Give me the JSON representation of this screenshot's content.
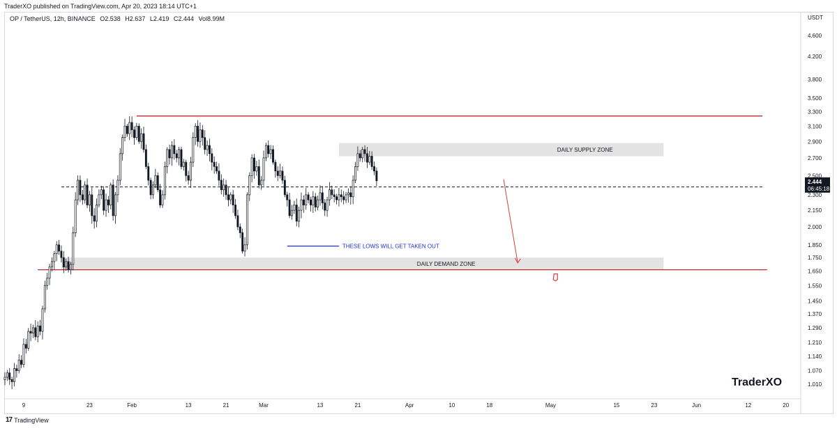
{
  "header": {
    "published": "TraderXO published on TradingView.com, Apr 20, 2023 18:14 UTC+1"
  },
  "legend": {
    "symbol": "OP / TetherUS, 12h, BINANCE",
    "open": "O2.538",
    "high": "H2.637",
    "low": "L2.419",
    "close": "C2.444",
    "volume": "Vol8.99M"
  },
  "footer": {
    "brand": "TradingView",
    "icon": "tradingview-logo-icon"
  },
  "watermark": "TraderXO",
  "colors": {
    "up": "#131722",
    "down": "#131722",
    "resistance": "#c2272d",
    "support_line": "#c2272d",
    "lows_line": "#1b2ee0",
    "zone_fill": "#e3e3e3",
    "arrow": "#e0393e"
  },
  "chart_data": {
    "type": "candlestick",
    "title": "",
    "currency": "USDT",
    "y_scale": "log",
    "ylim": [
      0.95,
      4.9
    ],
    "y_ticks": [
      "4.600",
      "4.200",
      "3.800",
      "3.500",
      "3.300",
      "3.100",
      "2.900",
      "2.700",
      "2.500",
      "2.300",
      "2.150",
      "2.000",
      "1.850",
      "1.750",
      "1.650",
      "1.550",
      "1.450",
      "1.370",
      "1.290",
      "1.210",
      "1.140",
      "1.070",
      "1.010"
    ],
    "x_ticks": [
      {
        "label": "9",
        "date": "2023-01-09"
      },
      {
        "label": "23",
        "date": "2023-01-23"
      },
      {
        "label": "Feb",
        "date": "2023-02-01"
      },
      {
        "label": "13",
        "date": "2023-02-13"
      },
      {
        "label": "21",
        "date": "2023-02-21"
      },
      {
        "label": "Mar",
        "date": "2023-03-01"
      },
      {
        "label": "13",
        "date": "2023-03-13"
      },
      {
        "label": "21",
        "date": "2023-03-21"
      },
      {
        "label": "Apr",
        "date": "2023-04-01"
      },
      {
        "label": "10",
        "date": "2023-04-10"
      },
      {
        "label": "18",
        "date": "2023-04-18"
      },
      {
        "label": "May",
        "date": "2023-05-01"
      },
      {
        "label": "15",
        "date": "2023-05-15"
      },
      {
        "label": "23",
        "date": "2023-05-23"
      },
      {
        "label": "Jun",
        "date": "2023-06-01"
      },
      {
        "label": "12",
        "date": "2023-06-12"
      },
      {
        "label": "20",
        "date": "2023-06-20"
      }
    ],
    "date_range": [
      "2023-01-05",
      "2023-06-23"
    ],
    "last_price": {
      "value": 2.444,
      "label": "2.444",
      "countdown": "06:45:18",
      "dashed_level": 2.38
    },
    "series": [
      {
        "name": "OP / TetherUS",
        "interval": "12h",
        "start": "2023-01-05",
        "closes": [
          1.04,
          1.06,
          1.03,
          1.02,
          1.08,
          1.07,
          1.12,
          1.1,
          1.2,
          1.18,
          1.27,
          1.26,
          1.29,
          1.24,
          1.3,
          1.27,
          1.4,
          1.55,
          1.6,
          1.68,
          1.72,
          1.78,
          1.85,
          1.8,
          1.75,
          1.68,
          1.72,
          1.66,
          1.7,
          1.95,
          2.25,
          2.45,
          2.3,
          2.25,
          2.4,
          2.2,
          2.3,
          2.1,
          2.05,
          2.2,
          2.3,
          2.35,
          2.15,
          2.25,
          2.2,
          2.4,
          2.1,
          2.3,
          2.45,
          2.75,
          2.95,
          3.1,
          3.0,
          3.15,
          3.05,
          2.95,
          3.1,
          2.9,
          3.0,
          2.8,
          2.6,
          2.45,
          2.3,
          2.4,
          2.5,
          2.35,
          2.2,
          2.3,
          2.6,
          2.8,
          2.7,
          2.85,
          2.75,
          2.7,
          2.8,
          2.6,
          2.65,
          2.5,
          2.45,
          2.65,
          2.95,
          3.1,
          2.9,
          3.05,
          2.95,
          2.8,
          2.85,
          2.75,
          2.65,
          2.6,
          2.55,
          2.45,
          2.35,
          2.4,
          2.3,
          2.25,
          2.3,
          2.2,
          2.1,
          2.0,
          1.95,
          1.8,
          1.85,
          2.3,
          2.5,
          2.7,
          2.55,
          2.6,
          2.4,
          2.45,
          2.7,
          2.85,
          2.75,
          2.8,
          2.65,
          2.55,
          2.5,
          2.55,
          2.45,
          2.3,
          2.25,
          2.1,
          2.15,
          2.2,
          2.05,
          2.15,
          2.25,
          2.2,
          2.3,
          2.25,
          2.2,
          2.28,
          2.18,
          2.25,
          2.32,
          2.22,
          2.15,
          2.25,
          2.35,
          2.3,
          2.28,
          2.25,
          2.3,
          2.28,
          2.25,
          2.3,
          2.32,
          2.28,
          2.45,
          2.6,
          2.75,
          2.7,
          2.8,
          2.75,
          2.65,
          2.72,
          2.6,
          2.55,
          2.444
        ]
      }
    ],
    "drawings": {
      "resistance_level": 3.24,
      "support_level": 1.66,
      "supply_zone": {
        "from": 2.72,
        "to": 2.88,
        "start": "2023-03-17",
        "end": "2023-05-25",
        "label": "DAILY SUPPLY ZONE"
      },
      "demand_zone": {
        "from": 1.66,
        "to": 1.75,
        "start": "2023-01-17",
        "end": "2023-05-25",
        "label": "DAILY DEMAND ZONE"
      },
      "lows_line": {
        "value": 1.84,
        "start": "2023-03-06",
        "end": "2023-03-17",
        "label": "THESE LOWS WILL GET TAKEN OUT"
      },
      "arrow": {
        "from_date": "2023-04-21",
        "from_value": 2.46,
        "to_date": "2023-04-24",
        "to_value": 1.71
      }
    }
  }
}
